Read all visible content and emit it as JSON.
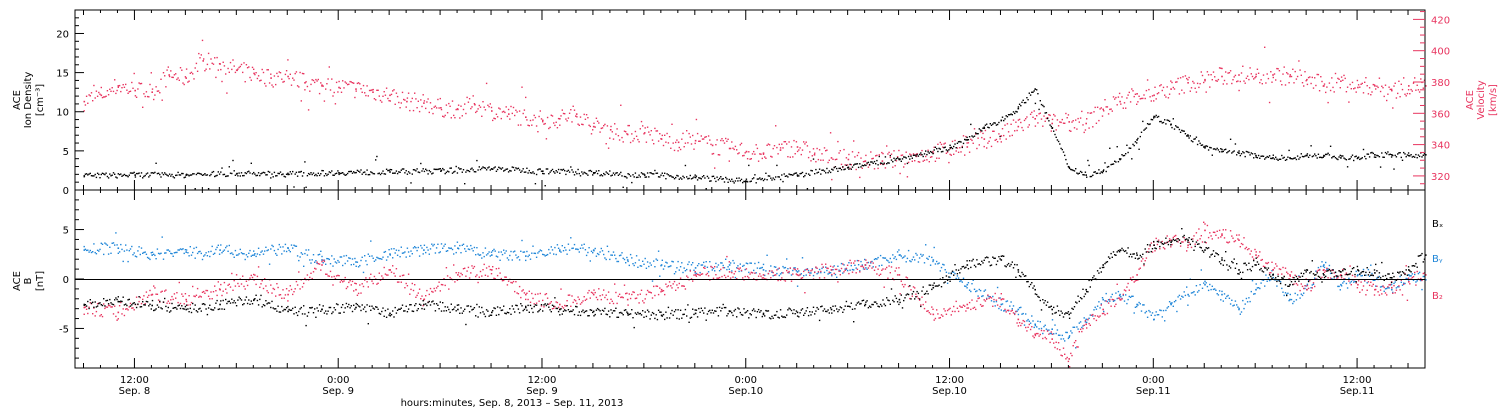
{
  "colors": {
    "black": "#000000",
    "red": "#e8345f",
    "blue": "#1f86d8"
  },
  "x_axis": {
    "title": "hours:minutes, Sep.  8, 2013 – Sep. 11, 2013",
    "ticks": [
      {
        "hour": 12,
        "time": "12:00",
        "date": "Sep. 8"
      },
      {
        "hour": 24,
        "time": "0:00",
        "date": "Sep. 9"
      },
      {
        "hour": 36,
        "time": "12:00",
        "date": "Sep. 9"
      },
      {
        "hour": 48,
        "time": "0:00",
        "date": "Sep.10"
      },
      {
        "hour": 60,
        "time": "12:00",
        "date": "Sep.10"
      },
      {
        "hour": 72,
        "time": "0:00",
        "date": "Sep.11"
      },
      {
        "hour": 84,
        "time": "12:00",
        "date": "Sep.11"
      }
    ]
  },
  "panel1": {
    "left_label": [
      "ACE",
      "Ion Density",
      "[cm⁻³]"
    ],
    "right_label": [
      "ACE",
      "Velocity",
      "[km/s]"
    ],
    "left_ticks": [
      "0",
      "5",
      "10",
      "15",
      "20"
    ],
    "right_ticks": [
      "320",
      "340",
      "360",
      "380",
      "400",
      "420"
    ]
  },
  "panel2": {
    "left_label": [
      "ACE",
      "B",
      "[nT]"
    ],
    "left_ticks": [
      "-5",
      "0",
      "5"
    ],
    "legend": [
      "Bₓ",
      "Bᵧ",
      "B₂"
    ]
  },
  "chart_data": [
    {
      "type": "scatter",
      "title": "",
      "xlabel": "hours:minutes, Sep.  8, 2013 – Sep. 11, 2013",
      "x_unit": "hours since Sep. 8 00:00",
      "xlim": [
        8.5,
        88
      ],
      "ylim_left": [
        0,
        23
      ],
      "ylim_right": [
        311,
        426
      ],
      "series": [
        {
          "name": "Ion Density",
          "axis": "left",
          "color": "#000000",
          "x": [
            9,
            12,
            15,
            18,
            21,
            24,
            27,
            30,
            33,
            36,
            39,
            42,
            45,
            48,
            51,
            54,
            57,
            60,
            61,
            62,
            63,
            64,
            65,
            66,
            67,
            68,
            69,
            70,
            71,
            72,
            73,
            74,
            75,
            76,
            77,
            78,
            79,
            80,
            81,
            82,
            83,
            84,
            85,
            86,
            87,
            88
          ],
          "y": [
            1.9,
            2.0,
            2.0,
            2.2,
            2.1,
            2.3,
            2.4,
            2.5,
            2.8,
            2.5,
            2.3,
            2.0,
            1.7,
            1.2,
            2.0,
            3.0,
            4.0,
            5.5,
            6.5,
            8.0,
            9.0,
            10.5,
            13.0,
            8.0,
            3.0,
            2.0,
            2.5,
            4.0,
            6.5,
            9.5,
            8.5,
            7.0,
            5.5,
            5.0,
            4.8,
            4.5,
            4.2,
            4.2,
            4.5,
            4.5,
            4.2,
            4.2,
            4.6,
            4.6,
            4.5,
            4.6
          ]
        },
        {
          "name": "Velocity",
          "axis": "right",
          "color": "#e8345f",
          "x": [
            9,
            10,
            11,
            12,
            13,
            14,
            15,
            16,
            17,
            18,
            19,
            20,
            21,
            22,
            23,
            24,
            25,
            26,
            27,
            28,
            29,
            30,
            31,
            32,
            33,
            34,
            35,
            36,
            37,
            38,
            39,
            40,
            41,
            42,
            43,
            44,
            45,
            46,
            47,
            48,
            49,
            50,
            51,
            52,
            53,
            54,
            55,
            56,
            57,
            58,
            59,
            60,
            61,
            62,
            63,
            64,
            65,
            66,
            67,
            68,
            69,
            70,
            71,
            72,
            73,
            74,
            75,
            76,
            77,
            78,
            79,
            80,
            81,
            82,
            83,
            84,
            85,
            86,
            87,
            88
          ],
          "y": [
            368,
            372,
            378,
            375,
            374,
            385,
            383,
            394,
            392,
            388,
            386,
            383,
            384,
            380,
            378,
            377,
            376,
            374,
            372,
            368,
            367,
            364,
            363,
            366,
            362,
            360,
            358,
            356,
            357,
            360,
            352,
            350,
            347,
            348,
            344,
            342,
            343,
            340,
            338,
            336,
            335,
            337,
            339,
            334,
            332,
            331,
            330,
            330,
            331,
            333,
            335,
            338,
            339,
            344,
            346,
            352,
            357,
            354,
            355,
            354,
            363,
            368,
            373,
            372,
            376,
            380,
            382,
            384,
            385,
            384,
            385,
            384,
            382,
            378,
            381,
            377,
            378,
            375,
            378,
            378
          ]
        }
      ]
    },
    {
      "type": "scatter",
      "title": "",
      "xlabel": "hours:minutes, Sep.  8, 2013 – Sep. 11, 2013",
      "x_unit": "hours since Sep. 8 00:00",
      "xlim": [
        8.5,
        88
      ],
      "ylim": [
        -9,
        9
      ],
      "series": [
        {
          "name": "Bx",
          "color": "#000000",
          "x": [
            9,
            11,
            13,
            15,
            17,
            19,
            21,
            23,
            25,
            27,
            29,
            31,
            33,
            35,
            37,
            39,
            41,
            43,
            45,
            47,
            49,
            51,
            53,
            55,
            57,
            59,
            61,
            63,
            64,
            65,
            66,
            67,
            68,
            69,
            70,
            71,
            72,
            73,
            74,
            75,
            76,
            77,
            78,
            79,
            80,
            81,
            82,
            83,
            84,
            85,
            86,
            87,
            88
          ],
          "y": [
            -2.5,
            -2.2,
            -2.6,
            -3.0,
            -2.5,
            -2.0,
            -3.2,
            -3.0,
            -2.8,
            -3.4,
            -2.5,
            -3.0,
            -3.3,
            -2.8,
            -3.0,
            -3.2,
            -3.4,
            -3.6,
            -3.4,
            -3.2,
            -3.5,
            -3.3,
            -3.0,
            -2.5,
            -2.0,
            -0.8,
            1.5,
            2.0,
            1.0,
            -1.0,
            -3.0,
            -3.5,
            -1.0,
            1.5,
            3.0,
            2.5,
            3.5,
            3.8,
            4.0,
            3.0,
            2.0,
            1.0,
            1.5,
            0.5,
            -0.5,
            1.0,
            0.5,
            0.8,
            1.0,
            0.7,
            0.2,
            1.0,
            2.5
          ]
        },
        {
          "name": "By",
          "color": "#1f86d8",
          "x": [
            9,
            11,
            13,
            15,
            17,
            19,
            21,
            23,
            25,
            27,
            29,
            31,
            33,
            35,
            37,
            39,
            41,
            43,
            45,
            47,
            49,
            51,
            53,
            55,
            57,
            59,
            61,
            63,
            64,
            65,
            66,
            67,
            68,
            69,
            70,
            71,
            72,
            73,
            74,
            75,
            76,
            77,
            78,
            79,
            80,
            81,
            82,
            83,
            84,
            85,
            86,
            87,
            88
          ],
          "y": [
            3.0,
            3.2,
            2.5,
            2.8,
            3.0,
            2.5,
            3.2,
            2.0,
            1.8,
            2.6,
            3.0,
            3.2,
            2.5,
            2.4,
            3.0,
            3.0,
            2.0,
            1.5,
            1.2,
            1.5,
            1.0,
            0.8,
            1.0,
            1.5,
            2.5,
            2.0,
            -0.5,
            -2.5,
            -3.0,
            -4.5,
            -5.0,
            -5.8,
            -4.0,
            -2.0,
            -1.5,
            -2.5,
            -4.0,
            -2.5,
            -1.5,
            -0.5,
            -1.5,
            -3.0,
            -1.0,
            0.5,
            -2.0,
            -1.0,
            1.5,
            -0.5,
            0.5,
            0.0,
            -1.0,
            0.5,
            0.0
          ]
        },
        {
          "name": "Bz",
          "color": "#e8345f",
          "x": [
            9,
            11,
            13,
            15,
            17,
            19,
            21,
            23,
            25,
            27,
            29,
            31,
            33,
            35,
            37,
            39,
            41,
            43,
            45,
            47,
            49,
            51,
            53,
            55,
            57,
            59,
            61,
            63,
            64,
            65,
            66,
            67,
            68,
            69,
            70,
            71,
            72,
            73,
            74,
            75,
            76,
            77,
            78,
            79,
            80,
            81,
            82,
            83,
            84,
            85,
            86,
            87,
            88
          ],
          "y": [
            -2.8,
            -3.3,
            -1.5,
            -2.0,
            -1.0,
            0.0,
            -1.5,
            1.5,
            -1.0,
            1.0,
            -2.0,
            0.5,
            1.0,
            -1.5,
            -2.5,
            -1.5,
            -2.0,
            -1.0,
            0.5,
            0.8,
            0.5,
            0.5,
            1.0,
            1.5,
            0.5,
            -3.5,
            -2.5,
            -2.0,
            -4.0,
            -5.5,
            -6.0,
            -8.0,
            -4.5,
            -3.0,
            -2.0,
            0.5,
            3.5,
            4.0,
            3.5,
            5.0,
            4.5,
            4.0,
            2.5,
            1.0,
            0.5,
            -1.0,
            1.0,
            0.5,
            -0.5,
            -1.0,
            -0.8,
            -0.2,
            0.5
          ]
        }
      ]
    }
  ]
}
